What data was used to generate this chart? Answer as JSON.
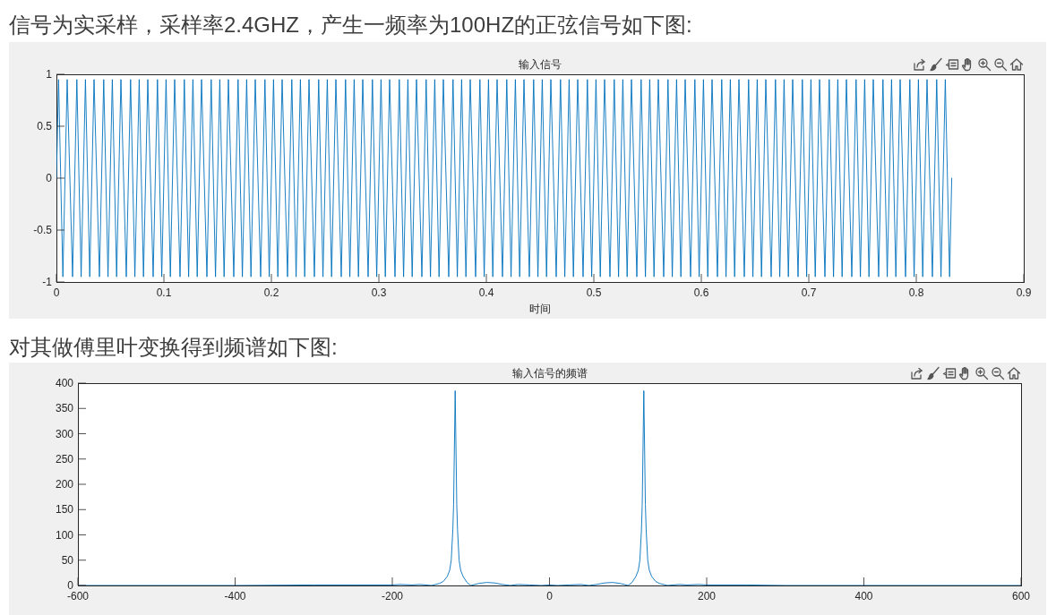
{
  "chart_data": [
    {
      "type": "line",
      "annotations": [
        "信号为实采样，采样率2.4GHZ，产生一频率为100HZ的正弦信号如下图:"
      ],
      "title": "输入信号",
      "xlabel": "时间",
      "xlim": [
        0,
        0.9
      ],
      "xticks": [
        0,
        0.1,
        0.2,
        0.3,
        0.4,
        0.5,
        0.6,
        0.7,
        0.8,
        0.9
      ],
      "ylim": [
        -1,
        1
      ],
      "yticks": [
        -1,
        -0.5,
        0,
        0.5,
        1
      ],
      "marker": "none",
      "color": "#0072bd",
      "x": [
        0,
        0.002,
        0.006,
        0.01,
        0.015,
        0.019,
        0.023,
        0.027,
        0.031,
        0.035,
        0.04,
        0.044,
        0.048,
        0.052,
        0.056,
        0.06,
        0.065,
        0.069,
        0.073,
        0.077,
        0.081,
        0.085,
        0.09,
        0.094,
        0.098,
        0.102,
        0.106,
        0.11,
        0.115,
        0.119,
        0.123,
        0.127,
        0.131,
        0.135,
        0.14,
        0.144,
        0.148,
        0.152,
        0.156,
        0.16,
        0.165,
        0.169,
        0.173,
        0.177,
        0.181,
        0.185,
        0.19,
        0.194,
        0.198,
        0.202,
        0.206,
        0.21,
        0.215,
        0.219,
        0.223,
        0.227,
        0.231,
        0.235,
        0.24,
        0.244,
        0.248,
        0.252,
        0.256,
        0.26,
        0.265,
        0.269,
        0.273,
        0.277,
        0.281,
        0.285,
        0.29,
        0.294,
        0.298,
        0.302,
        0.306,
        0.31,
        0.315,
        0.319,
        0.323,
        0.327,
        0.331,
        0.335,
        0.34,
        0.344,
        0.348,
        0.352,
        0.356,
        0.36,
        0.365,
        0.369,
        0.373,
        0.377,
        0.381,
        0.385,
        0.39,
        0.394,
        0.398,
        0.402,
        0.406,
        0.41,
        0.415,
        0.419,
        0.423,
        0.427,
        0.431,
        0.435,
        0.44,
        0.444,
        0.448,
        0.452,
        0.456,
        0.46,
        0.465,
        0.469,
        0.473,
        0.477,
        0.481,
        0.485,
        0.49,
        0.494,
        0.498,
        0.502,
        0.506,
        0.51,
        0.515,
        0.519,
        0.523,
        0.527,
        0.531,
        0.535,
        0.54,
        0.544,
        0.548,
        0.552,
        0.556,
        0.56,
        0.565,
        0.569,
        0.573,
        0.577,
        0.581,
        0.585,
        0.59,
        0.594,
        0.598,
        0.602,
        0.606,
        0.61,
        0.615,
        0.619,
        0.623,
        0.627,
        0.631,
        0.635,
        0.64,
        0.644,
        0.648,
        0.652,
        0.656,
        0.66,
        0.665,
        0.669,
        0.673,
        0.677,
        0.681,
        0.685,
        0.69,
        0.694,
        0.698,
        0.702,
        0.706,
        0.71,
        0.715,
        0.719,
        0.723,
        0.727,
        0.731,
        0.735,
        0.74,
        0.744,
        0.748,
        0.752,
        0.756,
        0.76,
        0.765,
        0.769,
        0.773,
        0.777,
        0.781,
        0.785,
        0.79,
        0.794,
        0.798,
        0.802,
        0.806,
        0.81,
        0.815,
        0.819,
        0.823,
        0.827,
        0.831,
        0.833
      ],
      "values": [
        0,
        0.95,
        -0.95,
        0.95,
        -0.95,
        0.95,
        -0.95,
        0.95,
        -0.95,
        0.95,
        -0.95,
        0.95,
        -0.95,
        0.95,
        -0.95,
        0.95,
        -0.95,
        0.95,
        -0.95,
        0.95,
        -0.95,
        0.95,
        -0.95,
        0.95,
        -0.95,
        0.95,
        -0.95,
        0.95,
        -0.95,
        0.95,
        -0.95,
        0.95,
        -0.95,
        0.95,
        -0.95,
        0.95,
        -0.95,
        0.95,
        -0.95,
        0.95,
        -0.95,
        0.95,
        -0.95,
        0.95,
        -0.95,
        0.95,
        -0.95,
        0.95,
        -0.95,
        0.95,
        -0.95,
        0.95,
        -0.95,
        0.95,
        -0.95,
        0.95,
        -0.95,
        0.95,
        -0.95,
        0.95,
        -0.95,
        0.95,
        -0.95,
        0.95,
        -0.95,
        0.95,
        -0.95,
        0.95,
        -0.95,
        0.95,
        -0.95,
        0.95,
        -0.95,
        0.95,
        -0.95,
        0.95,
        -0.95,
        0.95,
        -0.95,
        0.95,
        -0.95,
        0.95,
        -0.95,
        0.95,
        -0.95,
        0.95,
        -0.95,
        0.95,
        -0.95,
        0.95,
        -0.95,
        0.95,
        -0.95,
        0.95,
        -0.95,
        0.95,
        -0.95,
        0.95,
        -0.95,
        0.95,
        -0.95,
        0.95,
        -0.95,
        0.95,
        -0.95,
        0.95,
        -0.95,
        0.95,
        -0.95,
        0.95,
        -0.95,
        0.95,
        -0.95,
        0.95,
        -0.95,
        0.95,
        -0.95,
        0.95,
        -0.95,
        0.95,
        -0.95,
        0.95,
        -0.95,
        0.95,
        -0.95,
        0.95,
        -0.95,
        0.95,
        -0.95,
        0.95,
        -0.95,
        0.95,
        -0.95,
        0.95,
        -0.95,
        0.95,
        -0.95,
        0.95,
        -0.95,
        0.95,
        -0.95,
        0.95,
        -0.95,
        0.95,
        -0.95,
        0.95,
        -0.95,
        0.95,
        -0.95,
        0.95,
        -0.95,
        0.95,
        -0.95,
        0.95,
        -0.95,
        0.95,
        -0.95,
        0.95,
        -0.95,
        0.95,
        -0.95,
        0.95,
        -0.95,
        0.95,
        -0.95,
        0.95,
        -0.95,
        0.95,
        -0.95,
        0.95,
        -0.95,
        0.95,
        -0.95,
        0.95,
        -0.95,
        0.95,
        -0.95,
        0.95,
        -0.95,
        0.95,
        -0.95,
        0.95,
        -0.95,
        0.95,
        -0.95,
        0.95,
        -0.95,
        0.95,
        -0.95,
        0.95,
        -0.95,
        0.95,
        -0.95,
        0.95,
        -0.95,
        0.95,
        -0.95,
        0.95,
        -0.95,
        0.95,
        -0.95,
        0
      ]
    },
    {
      "type": "line",
      "annotations": [
        "对其做傅里叶变换得到频谱如下图:"
      ],
      "title": "输入信号的频谱",
      "xlim": [
        -600,
        600
      ],
      "xticks": [
        -600,
        -400,
        -200,
        0,
        200,
        400,
        600
      ],
      "ylim": [
        0,
        400
      ],
      "yticks": [
        0,
        50,
        100,
        150,
        200,
        250,
        300,
        350,
        400
      ],
      "marker": "none",
      "color": "#0072bd",
      "x": [
        -600,
        -500,
        -400,
        -300,
        -250,
        -200,
        -190,
        -175,
        -165,
        -150,
        -140,
        -135,
        -130,
        -127,
        -125,
        -123,
        -122,
        -120,
        -118,
        -117,
        -115,
        -113,
        -110,
        -105,
        -100,
        -90,
        -80,
        -70,
        -60,
        -50,
        -40,
        -25,
        -10,
        0,
        10,
        25,
        40,
        50,
        60,
        70,
        80,
        90,
        100,
        105,
        110,
        113,
        115,
        117,
        118,
        120,
        122,
        123,
        125,
        127,
        130,
        135,
        140,
        150,
        165,
        175,
        190,
        200,
        250,
        300,
        400,
        500,
        600
      ],
      "values": [
        0,
        0,
        0,
        1,
        1,
        1,
        2,
        1,
        2,
        0,
        4,
        8,
        18,
        30,
        50,
        110,
        160,
        385,
        160,
        110,
        50,
        30,
        18,
        6,
        0,
        4,
        6,
        5,
        2,
        0,
        2,
        1,
        0,
        1,
        0,
        1,
        2,
        0,
        2,
        5,
        6,
        4,
        0,
        6,
        18,
        30,
        50,
        110,
        160,
        385,
        160,
        110,
        50,
        30,
        18,
        8,
        4,
        0,
        2,
        1,
        2,
        1,
        1,
        0,
        0,
        0,
        0
      ]
    }
  ]
}
